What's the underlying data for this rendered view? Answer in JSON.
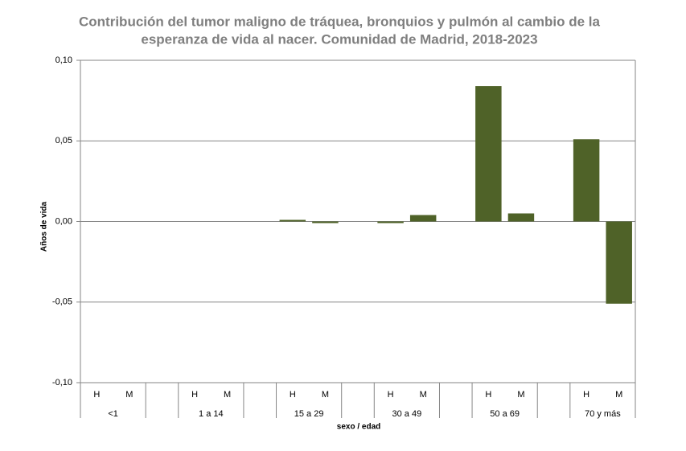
{
  "chart_data": {
    "type": "bar",
    "title": [
      "Contribución del tumor maligno de tráquea, bronquios y pulmón al cambio de la",
      "esperanza de vida al nacer. Comunidad de Madrid, 2018-2023"
    ],
    "y_label": "Años de vida",
    "x_label": "sexo / edad",
    "categories": [
      "H",
      "M",
      null,
      "H",
      "M",
      null,
      "H",
      "M",
      null,
      "H",
      "M",
      null,
      "H",
      "M",
      null,
      "H",
      "M"
    ],
    "groups": [
      "<1",
      "1 a 14",
      "15 a 29",
      "30 a 49",
      "50 a 69",
      "70 y más"
    ],
    "values": [
      0,
      0,
      null,
      0,
      0,
      null,
      0.001,
      -0.001,
      null,
      -0.001,
      0.004,
      null,
      0.084,
      0.005,
      null,
      0.051,
      -0.051
    ],
    "color": "#4f6228",
    "ylim": [
      -0.1,
      0.1
    ],
    "yticks": [
      {
        "value": -0.1,
        "label": "-0,10"
      },
      {
        "value": -0.05,
        "label": "-0,05"
      },
      {
        "value": 0,
        "label": "0,00"
      },
      {
        "value": 0.05,
        "label": "0,05"
      },
      {
        "value": 0.1,
        "label": "0,10"
      }
    ],
    "grid": true
  }
}
